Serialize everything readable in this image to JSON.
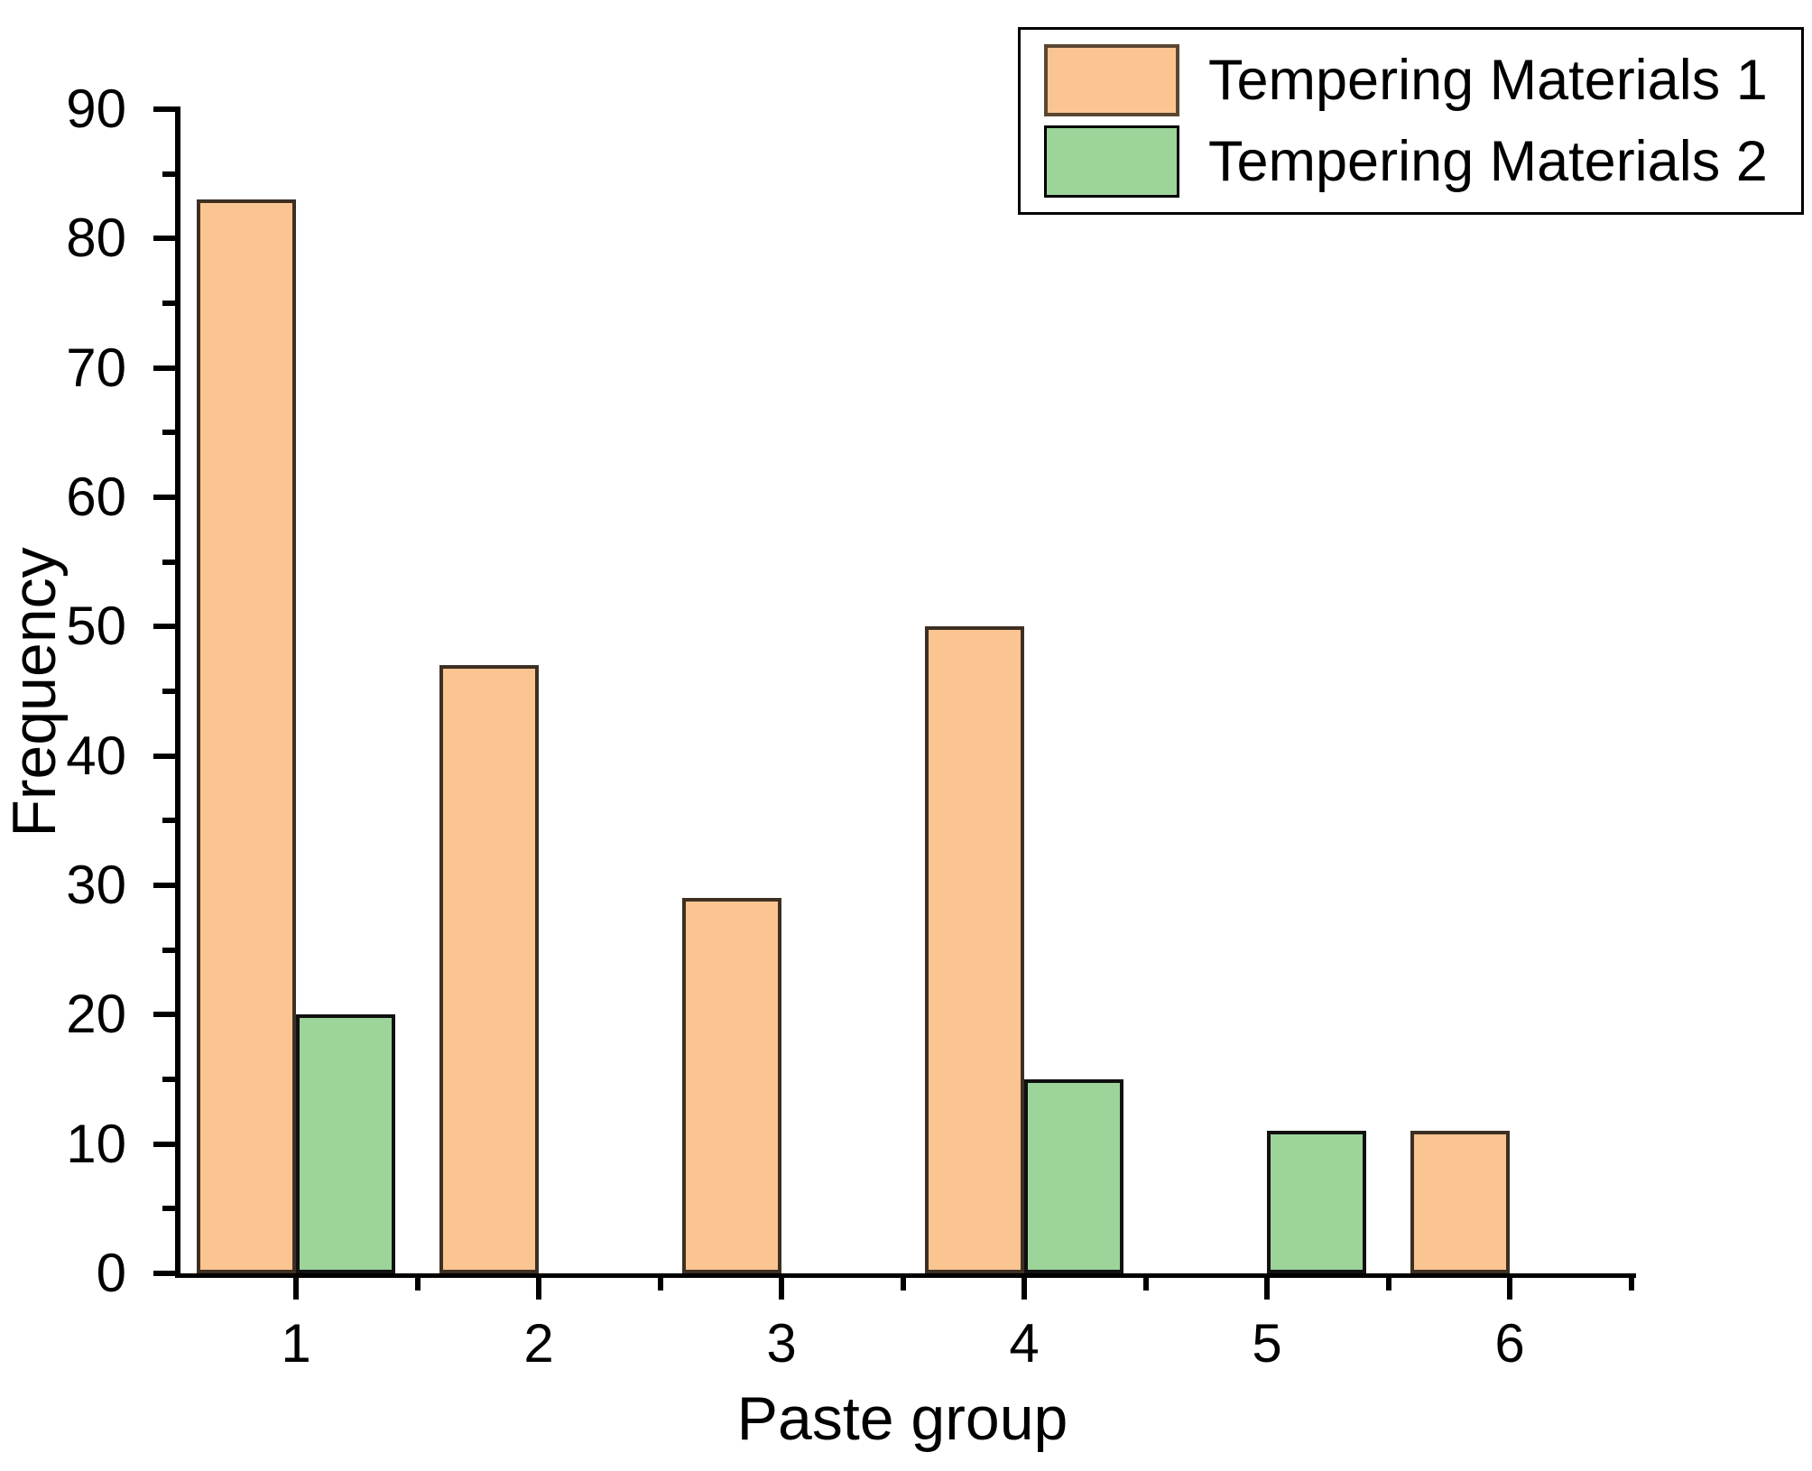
{
  "figure": {
    "background": "#ffffff"
  },
  "chart_data": {
    "type": "bar",
    "title": "",
    "xlabel": "Paste group",
    "ylabel": "Frequency",
    "categories": [
      "1",
      "2",
      "3",
      "4",
      "5",
      "6"
    ],
    "series": [
      {
        "name": "Tempering Materials 1",
        "values": [
          83,
          47,
          29,
          50,
          0,
          11
        ],
        "fill": "#FBC592",
        "border": "#3E2F23"
      },
      {
        "name": "Tempering Materials 2",
        "values": [
          20,
          0,
          0,
          15,
          11,
          0
        ],
        "fill": "#9CD49A",
        "border": "#111111"
      }
    ],
    "ylim": [
      0,
      90
    ],
    "y_major_step": 10,
    "y_minor_step": 5,
    "y_tick_labels": [
      "0",
      "10",
      "20",
      "30",
      "40",
      "50",
      "60",
      "70",
      "80",
      "90"
    ],
    "grid": false,
    "legend_position": "top-right",
    "axis_color": "#000000"
  }
}
